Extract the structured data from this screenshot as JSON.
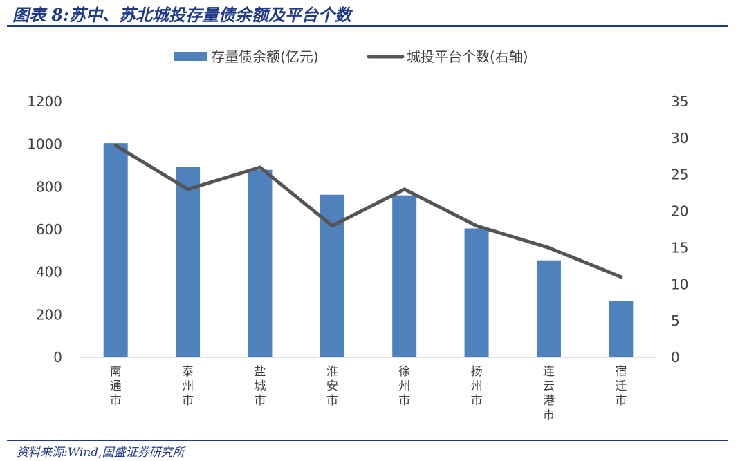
{
  "header": {
    "title": "图表 8:苏中、苏北城投存量债余额及平台个数"
  },
  "footer": {
    "source": "资料来源:Wind,国盛证券研究所"
  },
  "colors": {
    "bar": "#4f81bd",
    "line": "#555555",
    "accent": "#1f3a8a"
  },
  "chart_data": {
    "type": "bar",
    "categories": [
      "南通市",
      "泰州市",
      "盐城市",
      "淮安市",
      "徐州市",
      "扬州市",
      "连云港市",
      "宿迁市"
    ],
    "series": [
      {
        "name": "存量债余额(亿元)",
        "type": "bar",
        "axis": "left",
        "values": [
          1005,
          893,
          880,
          763,
          760,
          605,
          455,
          265
        ]
      },
      {
        "name": "城投平台个数(右轴)",
        "type": "line",
        "axis": "right",
        "values": [
          29,
          23,
          26,
          18,
          23,
          18,
          15,
          11
        ]
      }
    ],
    "y_left": {
      "range": [
        0,
        1200
      ],
      "ticks": [
        0,
        200,
        400,
        600,
        800,
        1000,
        1200
      ]
    },
    "y_right": {
      "range": [
        0,
        35
      ],
      "ticks": [
        0,
        5,
        10,
        15,
        20,
        25,
        30,
        35
      ]
    },
    "legend_position": "top-center",
    "grid": false
  }
}
